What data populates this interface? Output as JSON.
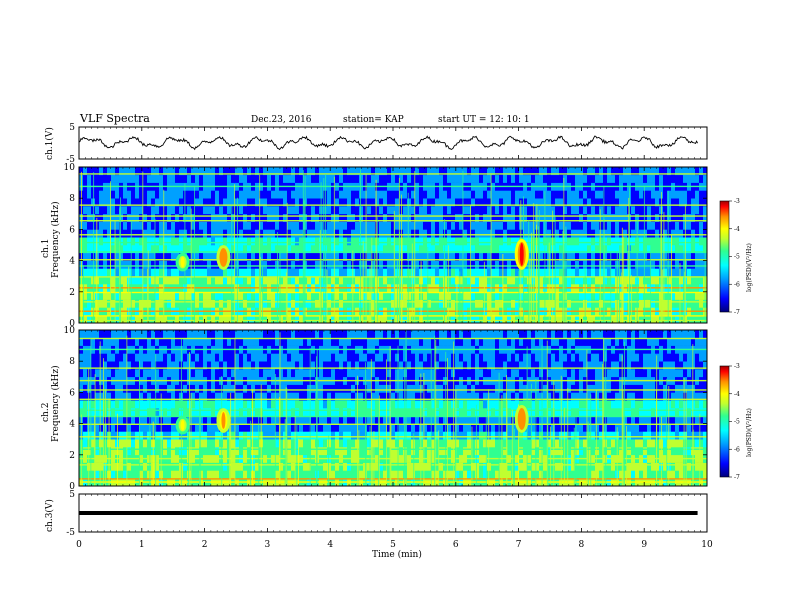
{
  "header": {
    "title": "VLF Spectra",
    "date": "Dec.23, 2016",
    "station": "station= KAP",
    "start_ut": "start  UT =   12: 10: 1"
  },
  "axes": {
    "time_label": "Time  (min)",
    "time_ticks": [
      "0",
      "1",
      "2",
      "3",
      "4",
      "5",
      "6",
      "7",
      "8",
      "9",
      "10"
    ],
    "ch1_volt_label": "ch.1(V)",
    "ch3_volt_label": "ch.3(V)",
    "volt_ticks": [
      "5",
      "-5"
    ],
    "ch1_freq_label_top": "ch.1",
    "ch1_freq_label": "Frequency (kHz)",
    "ch2_freq_label_top": "ch.2",
    "ch2_freq_label": "Frequency (kHz)",
    "freq_ticks": [
      "0",
      "2",
      "4",
      "6",
      "8",
      "10"
    ],
    "colorbar_label": "log(PSD)(V²/Hz)",
    "colorbar_ticks": [
      "-3",
      "-4",
      "-5",
      "-6",
      "-7"
    ]
  },
  "colors": {
    "background": "#000090",
    "colormap": [
      "#00007a",
      "#0000ff",
      "#00a0ff",
      "#00ffff",
      "#30ff90",
      "#c0ff30",
      "#ffff00",
      "#ff9000",
      "#ff0000",
      "#a00000"
    ]
  },
  "chart_data": [
    {
      "type": "line",
      "panel": "ch.1 waveform",
      "ylabel": "ch.1(V)",
      "xlim": [
        0,
        10
      ],
      "ylim": [
        -5,
        5
      ],
      "x_unit": "min",
      "description_values": "noisy signal oscillating roughly between -1.5 V and 2 V"
    },
    {
      "type": "heatmap",
      "panel": "ch.1 spectrogram",
      "ylabel": "Frequency (kHz)",
      "xlim": [
        0,
        10
      ],
      "ylim": [
        0,
        10
      ],
      "colorbar": {
        "label": "log(PSD)(V²/Hz)",
        "range": [
          -7,
          -3
        ]
      },
      "features": [
        {
          "kind": "emission",
          "time_min": 1.65,
          "freq_khz": [
            3.5,
            4.3
          ],
          "level": -4.5
        },
        {
          "kind": "emission",
          "time_min": 2.3,
          "freq_khz": [
            3.6,
            4.8
          ],
          "level": -3.8
        },
        {
          "kind": "emission",
          "time_min": 7.05,
          "freq_khz": [
            3.6,
            5.2
          ],
          "level": -3.6
        },
        {
          "kind": "band",
          "freq_khz": [
            0.0,
            2.6
          ],
          "level": -5.2
        },
        {
          "kind": "line",
          "freq_khz": 2.3,
          "level": -4.0
        },
        {
          "kind": "line",
          "freq_khz": 0.8,
          "level": -3.8
        }
      ]
    },
    {
      "type": "heatmap",
      "panel": "ch.2 spectrogram",
      "ylabel": "Frequency (kHz)",
      "xlim": [
        0,
        10
      ],
      "ylim": [
        0,
        10
      ],
      "colorbar": {
        "label": "log(PSD)(V²/Hz)",
        "range": [
          -7,
          -3
        ]
      },
      "features": [
        {
          "kind": "emission",
          "time_min": 1.65,
          "freq_khz": [
            3.5,
            4.3
          ],
          "level": -4.5
        },
        {
          "kind": "emission",
          "time_min": 2.3,
          "freq_khz": [
            3.6,
            4.8
          ],
          "level": -4.0
        },
        {
          "kind": "emission",
          "time_min": 7.05,
          "freq_khz": [
            3.6,
            5.0
          ],
          "level": -3.8
        },
        {
          "kind": "band",
          "freq_khz": [
            0.0,
            3.0
          ],
          "level": -5.2
        },
        {
          "kind": "line",
          "freq_khz": 0.5,
          "level": -3.8
        }
      ]
    },
    {
      "type": "line",
      "panel": "ch.3 waveform",
      "ylabel": "ch.3(V)",
      "xlim": [
        0,
        10
      ],
      "ylim": [
        -5,
        5
      ],
      "x_unit": "min",
      "description_values": "flat saturated line near 0 V"
    }
  ]
}
